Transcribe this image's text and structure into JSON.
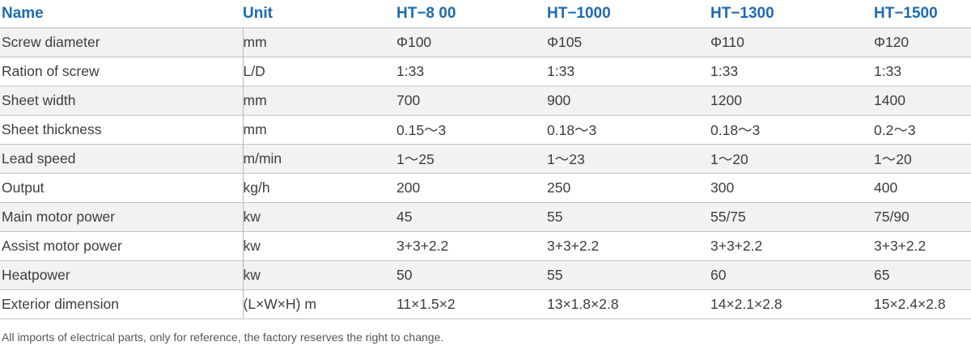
{
  "table": {
    "headers": {
      "name": "Name",
      "unit": "Unit",
      "models": [
        "HT−8 00",
        "HT−1000",
        "HT−1300",
        "HT−1500"
      ]
    },
    "rows": [
      {
        "name": "Screw diameter",
        "unit": "mm",
        "values": [
          "Φ100",
          "Φ105",
          "Φ110",
          "Φ120"
        ]
      },
      {
        "name": "Ration of screw",
        "unit": "L/D",
        "values": [
          "1:33",
          "1:33",
          "1:33",
          "1:33"
        ]
      },
      {
        "name": "Sheet width",
        "unit": "mm",
        "values": [
          "700",
          "900",
          "1200",
          "1400"
        ]
      },
      {
        "name": "Sheet thickness",
        "unit": "mm",
        "values": [
          "0.15～3",
          "0.18～3",
          "0.18～3",
          "0.2～3"
        ]
      },
      {
        "name": "Lead speed",
        "unit": "m/min",
        "values": [
          "1～25",
          "1～23",
          "1～20",
          "1～20"
        ]
      },
      {
        "name": "Output",
        "unit": "kg/h",
        "values": [
          "200",
          "250",
          "300",
          "400"
        ]
      },
      {
        "name": "Main motor power",
        "unit": "kw",
        "values": [
          "45",
          "55",
          "55/75",
          "75/90"
        ]
      },
      {
        "name": "Assist motor power",
        "unit": "kw",
        "values": [
          "3+3+2.2",
          "3+3+2.2",
          "3+3+2.2",
          "3+3+2.2"
        ]
      },
      {
        "name": "Heatpower",
        "unit": "kw",
        "values": [
          "50",
          "55",
          "60",
          "65"
        ]
      },
      {
        "name": "Exterior dimension",
        "unit": "(L×W×H) m",
        "values": [
          "11×1.5×2",
          "13×1.8×2.8",
          "14×2.1×2.8",
          "15×2.4×2.8"
        ]
      }
    ]
  },
  "footnote": "All imports of electrical parts, only for reference, the factory reserves the right to change.",
  "colors": {
    "header_text": "#1e6bb0",
    "body_text": "#3d3d3d",
    "stripe": "#f2f2f2"
  }
}
